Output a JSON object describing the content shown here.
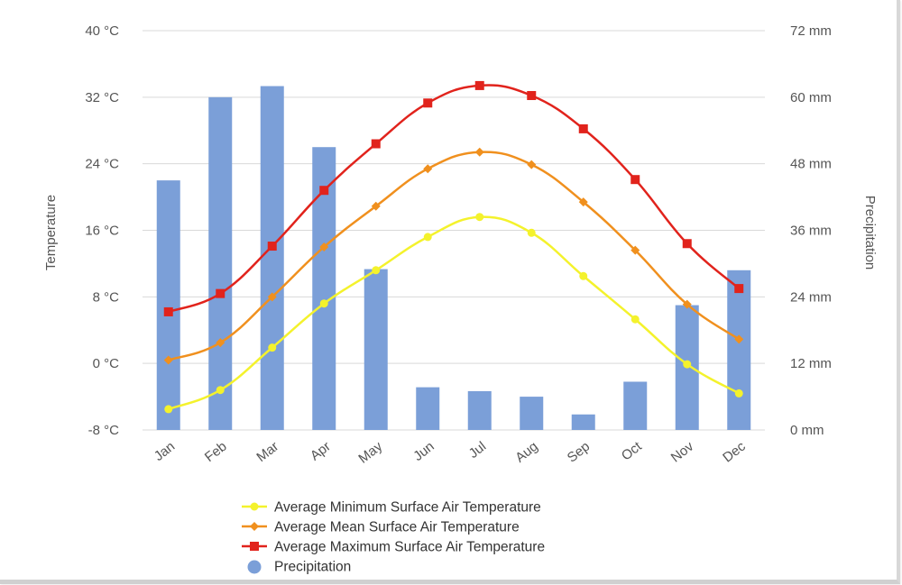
{
  "chart_data": {
    "type": "bar+line",
    "categories": [
      "Jan",
      "Feb",
      "Mar",
      "Apr",
      "May",
      "Jun",
      "Jul",
      "Aug",
      "Sep",
      "Oct",
      "Nov",
      "Dec"
    ],
    "y_left": {
      "label": "Temperature",
      "min": -8,
      "max": 40,
      "ticks": [
        -8,
        0,
        8,
        16,
        24,
        32,
        40
      ],
      "tick_labels": [
        "-8 °C",
        "0 °C",
        "8 °C",
        "16 °C",
        "24 °C",
        "32 °C",
        "40 °C"
      ]
    },
    "y_right": {
      "label": "Precipitation",
      "min": 0,
      "max": 72,
      "ticks": [
        0,
        12,
        24,
        36,
        48,
        60,
        72
      ],
      "tick_labels": [
        "0 mm",
        "12 mm",
        "24 mm",
        "36 mm",
        "48 mm",
        "60 mm",
        "72 mm"
      ]
    },
    "grid": true,
    "legend_position": "bottom",
    "series": [
      {
        "name": "Average Minimum Surface Air Temperature",
        "type": "line",
        "axis": "left",
        "color": "#f4f22c",
        "marker": "circle",
        "values": [
          -5.5,
          -3.2,
          1.9,
          7.2,
          11.2,
          15.2,
          17.6,
          15.7,
          10.5,
          5.3,
          -0.1,
          -3.6
        ]
      },
      {
        "name": "Average Mean Surface Air Temperature",
        "type": "line",
        "axis": "left",
        "color": "#f0901e",
        "marker": "diamond",
        "values": [
          0.4,
          2.5,
          8.0,
          14.0,
          18.9,
          23.4,
          25.4,
          23.9,
          19.4,
          13.6,
          7.1,
          2.9
        ]
      },
      {
        "name": "Average Maximum Surface Air Temperature",
        "type": "line",
        "axis": "left",
        "color": "#e1231c",
        "marker": "square",
        "values": [
          6.2,
          8.4,
          14.1,
          20.8,
          26.4,
          31.3,
          33.4,
          32.2,
          28.2,
          22.1,
          14.4,
          9.0
        ]
      },
      {
        "name": "Precipitation",
        "type": "bar",
        "axis": "right",
        "color": "#7b9fd8",
        "marker": "circle",
        "values": [
          45.0,
          60.0,
          62.0,
          51.0,
          29.0,
          7.7,
          7.0,
          6.0,
          2.8,
          8.7,
          22.5,
          28.8
        ]
      }
    ]
  },
  "colors": {
    "grid": "#d9d9d9",
    "tick_text": "#555555",
    "legend_text": "#333333"
  }
}
